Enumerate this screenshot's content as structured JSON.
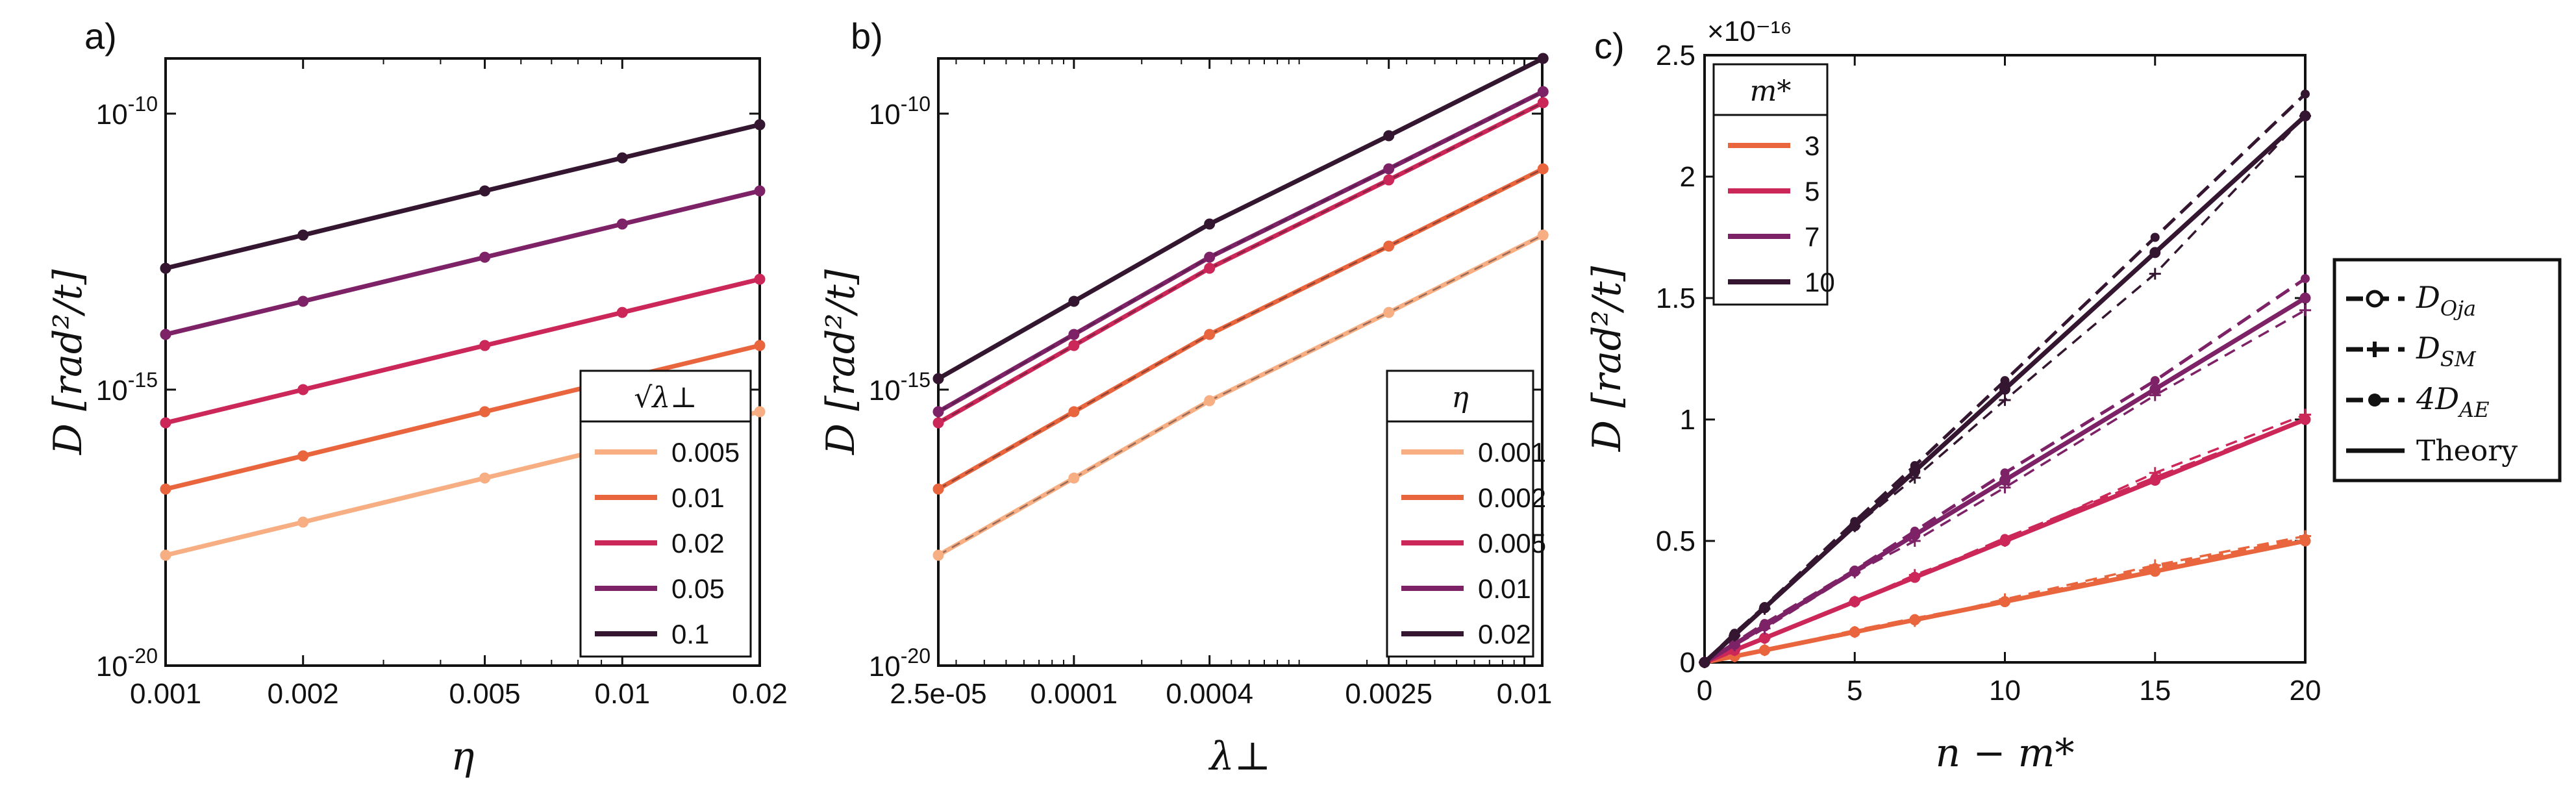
{
  "chart_data": [
    {
      "type": "line",
      "panel_label": "a)",
      "title": "",
      "xlabel": "η",
      "ylabel": "D [rad²/t]",
      "xscale": "log",
      "yscale": "log",
      "xlim": [
        0.001,
        0.02
      ],
      "ylim": [
        1e-20,
        1e-09
      ],
      "xticks": [
        0.001,
        0.002,
        0.005,
        0.01,
        0.02
      ],
      "xtick_labels": [
        "0.001",
        "0.002",
        "0.005",
        "0.01",
        "0.02"
      ],
      "yticks": [
        1e-20,
        1e-15,
        1e-10
      ],
      "ytick_labels": [
        {
          "base": "10",
          "exp": "-20"
        },
        {
          "base": "10",
          "exp": "-15"
        },
        {
          "base": "10",
          "exp": "-10"
        }
      ],
      "legend": {
        "title": "√λ⊥",
        "placement": "bottom-right"
      },
      "x": [
        0.001,
        0.002,
        0.005,
        0.01,
        0.02
      ],
      "series": [
        {
          "name": "0.005",
          "color": "#f6ae82",
          "values": [
            1e-18,
            3.98e-18,
            2.5e-17,
            1e-16,
            3.98e-16
          ]
        },
        {
          "name": "0.01",
          "color": "#e9653e",
          "values": [
            1.58e-17,
            6.3e-17,
            3.98e-16,
            1.58e-15,
            6.3e-15
          ]
        },
        {
          "name": "0.02",
          "color": "#cc2759",
          "values": [
            2.5e-16,
            1e-15,
            6.3e-15,
            2.5e-14,
            1e-13
          ]
        },
        {
          "name": "0.05",
          "color": "#7e2267",
          "values": [
            1e-14,
            3.98e-14,
            2.5e-13,
            1e-12,
            3.98e-12
          ]
        },
        {
          "name": "0.1",
          "color": "#341630",
          "values": [
            1.58e-13,
            6.3e-13,
            3.98e-12,
            1.58e-11,
            6.3e-11
          ]
        }
      ]
    },
    {
      "type": "line",
      "panel_label": "b)",
      "title": "",
      "xlabel": "λ⊥",
      "ylabel": "D [rad²/t]",
      "xscale": "log",
      "yscale": "log",
      "xlim": [
        2.5e-05,
        0.012
      ],
      "ylim": [
        1e-20,
        1e-09
      ],
      "xticks": [
        2.5e-05,
        0.0001,
        0.0004,
        0.0025,
        0.01
      ],
      "xtick_labels": [
        "2.5e-05",
        "0.0001",
        "0.0004",
        "0.0025",
        "0.01"
      ],
      "yticks": [
        1e-20,
        1e-15,
        1e-10
      ],
      "ytick_labels": [
        {
          "base": "10",
          "exp": "-20"
        },
        {
          "base": "10",
          "exp": "-15"
        },
        {
          "base": "10",
          "exp": "-10"
        }
      ],
      "legend": {
        "title": "η",
        "placement": "bottom-right"
      },
      "x": [
        2.5e-05,
        0.0001,
        0.0004,
        0.0025,
        0.0121
      ],
      "series": [
        {
          "name": "0.001",
          "color": "#f6ae82",
          "values": [
            1e-18,
            2.5e-17,
            6.3e-16,
            2.5e-14,
            6.3e-13
          ]
        },
        {
          "name": "0.002",
          "color": "#e9653e",
          "values": [
            1.58e-17,
            3.98e-16,
            1e-14,
            3.98e-13,
            1e-11
          ]
        },
        {
          "name": "0.005",
          "color": "#cc2759",
          "values": [
            2.5e-16,
            6.3e-15,
            1.58e-13,
            6.3e-12,
            1.58e-10
          ]
        },
        {
          "name": "0.01",
          "color": "#7e2267",
          "values": [
            3.98e-16,
            1e-14,
            2.5e-13,
            1e-11,
            2.5e-10
          ]
        },
        {
          "name": "0.02",
          "color": "#341630",
          "values": [
            1.58e-15,
            3.98e-14,
            1e-12,
            3.98e-11,
            1e-09
          ]
        }
      ]
    },
    {
      "type": "line",
      "panel_label": "c)",
      "title": "",
      "xlabel": "n − m*",
      "ylabel": "D [rad²/t]",
      "xscale": "linear",
      "yscale": "linear",
      "xlim": [
        0,
        20
      ],
      "ylim": [
        0,
        2.5
      ],
      "y_multiplier": "×10⁻¹⁶",
      "xticks": [
        0,
        5,
        10,
        15,
        20
      ],
      "xtick_labels": [
        "0",
        "5",
        "10",
        "15",
        "20"
      ],
      "yticks": [
        0,
        0.5,
        1,
        1.5,
        2,
        2.5
      ],
      "ytick_labels": [
        "0",
        "0.5",
        "1",
        "1.5",
        "2",
        "2.5"
      ],
      "legend": {
        "title": "m*",
        "placement": "top-left"
      },
      "x": [
        0,
        1,
        2,
        5,
        7,
        10,
        15,
        20
      ],
      "series": [
        {
          "name": "3",
          "color": "#e9653e",
          "values": [
            0,
            0.025,
            0.05,
            0.125,
            0.175,
            0.25,
            0.375,
            0.5
          ],
          "sm": [
            0,
            0.025,
            0.05,
            0.125,
            0.17,
            0.26,
            0.4,
            0.52
          ],
          "ae": [
            0,
            0.025,
            0.05,
            0.13,
            0.18,
            0.25,
            0.39,
            0.51
          ]
        },
        {
          "name": "5",
          "color": "#cc2759",
          "values": [
            0,
            0.05,
            0.1,
            0.25,
            0.35,
            0.5,
            0.75,
            1.0
          ],
          "sm": [
            0,
            0.05,
            0.1,
            0.25,
            0.36,
            0.5,
            0.78,
            1.02
          ],
          "ae": [
            0,
            0.05,
            0.1,
            0.25,
            0.35,
            0.51,
            0.76,
            1.0
          ]
        },
        {
          "name": "7",
          "color": "#7e2267",
          "values": [
            0,
            0.075,
            0.15,
            0.375,
            0.525,
            0.75,
            1.125,
            1.5
          ],
          "sm": [
            0,
            0.07,
            0.14,
            0.37,
            0.5,
            0.72,
            1.1,
            1.45
          ],
          "ae": [
            0,
            0.08,
            0.16,
            0.38,
            0.54,
            0.78,
            1.16,
            1.58
          ]
        },
        {
          "name": "10",
          "color": "#341630",
          "values": [
            0,
            0.1125,
            0.225,
            0.5625,
            0.7875,
            1.125,
            1.6875,
            2.25
          ],
          "sm": [
            0,
            0.11,
            0.22,
            0.56,
            0.76,
            1.08,
            1.6,
            2.25
          ],
          "ae": [
            0,
            0.12,
            0.23,
            0.58,
            0.81,
            1.16,
            1.75,
            2.34
          ]
        }
      ]
    }
  ],
  "method_legend": {
    "placement": "right",
    "entries": [
      {
        "label": "D",
        "sub": "Oja",
        "style": "dashed-circle"
      },
      {
        "label": "D",
        "sub": "SM",
        "style": "dashed-plus"
      },
      {
        "label": "4D",
        "sub": "AE",
        "style": "dashed-dot"
      },
      {
        "label": "Theory",
        "sub": "",
        "style": "solid"
      }
    ]
  }
}
